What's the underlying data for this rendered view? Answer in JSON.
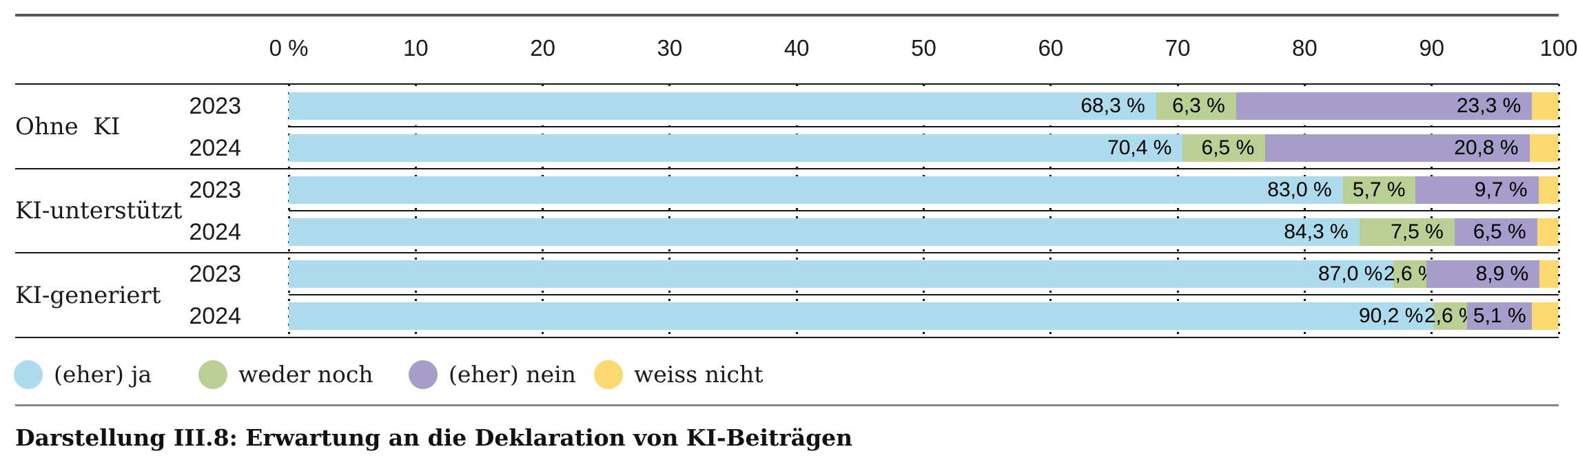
{
  "axis": {
    "ticks": [
      "0 %",
      "10",
      "20",
      "30",
      "40",
      "50",
      "60",
      "70",
      "80",
      "90",
      "100"
    ]
  },
  "groups": [
    {
      "label": "Ohne  KI"
    },
    {
      "label": "KI-unterstützt"
    },
    {
      "label": "KI-generiert"
    }
  ],
  "legend": {
    "items": [
      {
        "label": "(eher) ja",
        "color": "#abdbec"
      },
      {
        "label": "weder noch",
        "color": "#b9cf93"
      },
      {
        "label": "(eher) nein",
        "color": "#a79dca"
      },
      {
        "label": "weiss nicht",
        "color": "#fbd870"
      }
    ]
  },
  "caption": "Darstellung III.8: Erwartung an die Deklaration von KI-Beiträgen",
  "chart_data": {
    "type": "bar",
    "orientation": "horizontal",
    "stacked": true,
    "title": "Erwartung an die Deklaration von KI-Beiträgen",
    "figure_label": "Darstellung III.8",
    "unit": "%",
    "xlim": [
      0,
      100
    ],
    "x_ticks": [
      0,
      10,
      20,
      30,
      40,
      50,
      60,
      70,
      80,
      90,
      100
    ],
    "grid": "dotted-vertical",
    "legend_position": "bottom",
    "groups": [
      "Ohne KI",
      "KI-unterstützt",
      "KI-generiert"
    ],
    "rows": [
      {
        "group": "Ohne KI",
        "year": "2023"
      },
      {
        "group": "Ohne KI",
        "year": "2024"
      },
      {
        "group": "KI-unterstützt",
        "year": "2023"
      },
      {
        "group": "KI-unterstützt",
        "year": "2024"
      },
      {
        "group": "KI-generiert",
        "year": "2023"
      },
      {
        "group": "KI-generiert",
        "year": "2024"
      }
    ],
    "series": [
      {
        "name": "(eher) ja",
        "color": "#abdbec",
        "labeled": true,
        "values": [
          68.3,
          70.4,
          83.0,
          84.3,
          87.0,
          90.2
        ]
      },
      {
        "name": "weder noch",
        "color": "#b9cf93",
        "labeled": true,
        "values": [
          6.3,
          6.5,
          5.7,
          7.5,
          2.6,
          2.6
        ]
      },
      {
        "name": "(eher) nein",
        "color": "#a79dca",
        "labeled": true,
        "values": [
          23.3,
          20.8,
          9.7,
          6.5,
          8.9,
          5.1
        ]
      },
      {
        "name": "weiss nicht",
        "color": "#fbd870",
        "labeled": false,
        "values": [
          2.1,
          2.3,
          1.6,
          1.7,
          1.5,
          2.1
        ]
      }
    ]
  }
}
